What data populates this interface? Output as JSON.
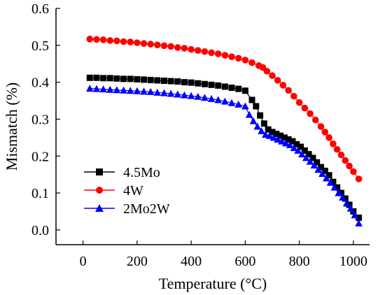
{
  "colors": {
    "4.5Mo": "#000000",
    "4W": "#ff0000",
    "2Mo2W": "#0000ff",
    "axis": "#000000"
  },
  "chart_data": {
    "type": "line",
    "xlabel": "Temperature (°C)",
    "ylabel": "Mismatch (%)",
    "xlim": [
      -100,
      1060
    ],
    "ylim": [
      -0.04,
      0.6
    ],
    "xticks": [
      0,
      200,
      400,
      600,
      800,
      1000
    ],
    "yticks": [
      0.0,
      0.1,
      0.2,
      0.3,
      0.4,
      0.5,
      0.6
    ],
    "x_tick_labels": [
      "0",
      "200",
      "400",
      "600",
      "800",
      "1000"
    ],
    "y_tick_labels": [
      "0.0",
      "0.1",
      "0.2",
      "0.3",
      "0.4",
      "0.5",
      "0.6"
    ],
    "grid": false,
    "legend_position": "lower-left",
    "series": [
      {
        "name": "4.5Mo",
        "marker": "square",
        "color": "#000000",
        "x": [
          25,
          50,
          75,
          100,
          125,
          150,
          175,
          200,
          225,
          250,
          275,
          300,
          325,
          350,
          375,
          400,
          425,
          450,
          475,
          500,
          525,
          550,
          575,
          600,
          625,
          640,
          655,
          670,
          685,
          700,
          715,
          730,
          745,
          760,
          775,
          790,
          805,
          820,
          835,
          850,
          865,
          880,
          895,
          910,
          925,
          940,
          955,
          970,
          985,
          1000,
          1020
        ],
        "y": [
          0.412,
          0.412,
          0.411,
          0.411,
          0.41,
          0.409,
          0.409,
          0.408,
          0.407,
          0.406,
          0.405,
          0.404,
          0.403,
          0.402,
          0.4,
          0.399,
          0.397,
          0.395,
          0.393,
          0.391,
          0.388,
          0.385,
          0.382,
          0.377,
          0.352,
          0.335,
          0.31,
          0.288,
          0.272,
          0.265,
          0.26,
          0.255,
          0.25,
          0.245,
          0.24,
          0.232,
          0.225,
          0.215,
          0.205,
          0.195,
          0.183,
          0.17,
          0.16,
          0.148,
          0.13,
          0.115,
          0.1,
          0.085,
          0.068,
          0.05,
          0.033
        ]
      },
      {
        "name": "4W",
        "marker": "circle",
        "color": "#ff0000",
        "x": [
          25,
          50,
          75,
          100,
          125,
          150,
          175,
          200,
          225,
          250,
          275,
          300,
          325,
          350,
          375,
          400,
          425,
          450,
          475,
          500,
          525,
          550,
          575,
          600,
          625,
          650,
          665,
          680,
          700,
          720,
          740,
          760,
          780,
          800,
          820,
          840,
          860,
          880,
          895,
          910,
          925,
          940,
          955,
          970,
          985,
          1000,
          1020
        ],
        "y": [
          0.517,
          0.516,
          0.515,
          0.513,
          0.512,
          0.51,
          0.509,
          0.507,
          0.505,
          0.503,
          0.501,
          0.499,
          0.497,
          0.494,
          0.492,
          0.489,
          0.486,
          0.483,
          0.48,
          0.477,
          0.473,
          0.469,
          0.465,
          0.46,
          0.453,
          0.445,
          0.44,
          0.43,
          0.418,
          0.405,
          0.392,
          0.378,
          0.362,
          0.345,
          0.33,
          0.315,
          0.298,
          0.28,
          0.265,
          0.25,
          0.233,
          0.218,
          0.203,
          0.188,
          0.173,
          0.158,
          0.138
        ]
      },
      {
        "name": "2Mo2W",
        "marker": "triangle",
        "color": "#0000ff",
        "x": [
          25,
          50,
          75,
          100,
          125,
          150,
          175,
          200,
          225,
          250,
          275,
          300,
          325,
          350,
          375,
          400,
          425,
          450,
          475,
          500,
          525,
          550,
          575,
          600,
          615,
          630,
          645,
          660,
          675,
          690,
          705,
          720,
          735,
          750,
          765,
          780,
          795,
          810,
          825,
          840,
          855,
          870,
          885,
          900,
          915,
          930,
          945,
          960,
          975,
          990,
          1005,
          1020
        ],
        "y": [
          0.383,
          0.382,
          0.381,
          0.38,
          0.379,
          0.378,
          0.377,
          0.376,
          0.375,
          0.374,
          0.372,
          0.371,
          0.369,
          0.367,
          0.365,
          0.363,
          0.361,
          0.358,
          0.355,
          0.352,
          0.348,
          0.344,
          0.34,
          0.335,
          0.312,
          0.295,
          0.28,
          0.268,
          0.258,
          0.255,
          0.25,
          0.245,
          0.24,
          0.235,
          0.23,
          0.222,
          0.215,
          0.205,
          0.195,
          0.185,
          0.175,
          0.163,
          0.152,
          0.14,
          0.128,
          0.115,
          0.1,
          0.088,
          0.072,
          0.058,
          0.04,
          0.018
        ]
      }
    ]
  }
}
